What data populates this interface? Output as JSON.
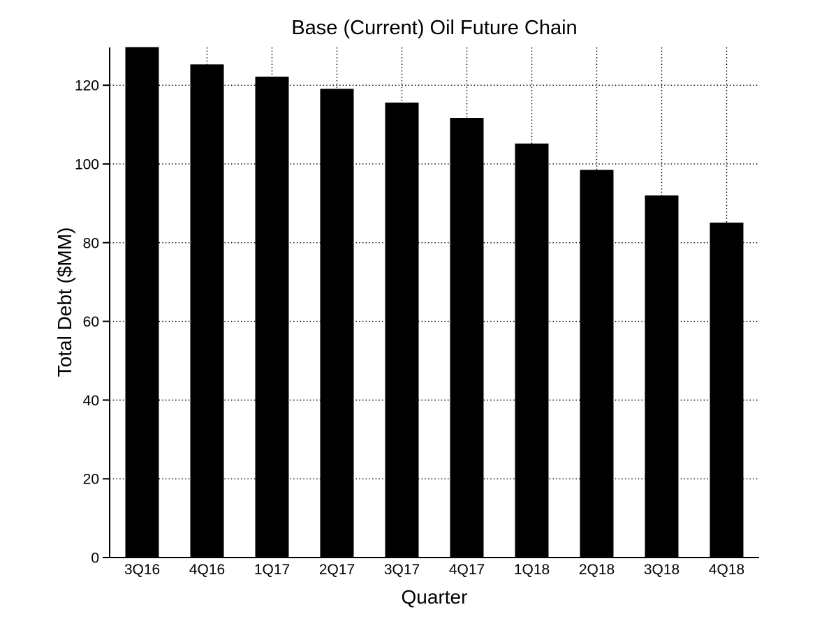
{
  "figure": {
    "background": "#ffffff"
  },
  "chart_data": {
    "type": "bar",
    "title": "Base (Current) Oil Future Chain",
    "xlabel": "Quarter",
    "ylabel": "Total Debt ($MM)",
    "categories": [
      "3Q16",
      "4Q16",
      "1Q17",
      "2Q17",
      "3Q17",
      "4Q17",
      "1Q18",
      "2Q18",
      "3Q18",
      "4Q18"
    ],
    "values": [
      129.6,
      125.2,
      122.1,
      119.0,
      115.5,
      111.6,
      105.1,
      98.4,
      91.9,
      85.0
    ],
    "ylim": [
      0,
      129.6
    ],
    "yticks": [
      0,
      20,
      40,
      60,
      80,
      100,
      120
    ],
    "ytick_labels": [
      "0",
      "20",
      "40",
      "60",
      "80",
      "100",
      "120"
    ],
    "grid": true,
    "grid_style": "dotted",
    "legend": null,
    "bar_color": "#000000",
    "axis_color": "#000000",
    "grid_color": "#000000",
    "text_color": "#000000"
  }
}
